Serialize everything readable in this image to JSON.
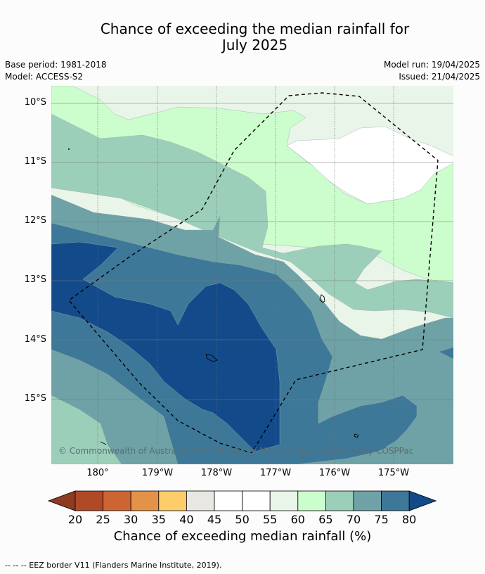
{
  "title_line1": "Chance of exceeding the median rainfall for",
  "title_line2": "July 2025",
  "meta": {
    "base_period": "Base period: 1981-2018",
    "model": "Model: ACCESS-S2",
    "model_run": "Model run: 19/04/2025",
    "issued": "Issued: 21/04/2025"
  },
  "lat_labels": [
    "10°S",
    "11°S",
    "12°S",
    "13°S",
    "14°S",
    "15°S"
  ],
  "lon_labels": [
    "180°",
    "179°W",
    "178°W",
    "177°W",
    "176°W",
    "175°W"
  ],
  "copyright": "© Commonwealth of Australia 2025, Bureau of Meteorology, supported by COSPPac",
  "colorbar": {
    "ticks": [
      "20",
      "25",
      "30",
      "35",
      "40",
      "45",
      "50",
      "55",
      "60",
      "65",
      "70",
      "75",
      "80"
    ],
    "colors": [
      "#8e3b22",
      "#b04a26",
      "#cd6533",
      "#e49248",
      "#fccd6a",
      "#e8e7e1",
      "#ffffff",
      "#ffffff",
      "#eaf5ea",
      "#ccfdcc",
      "#9ccfb9",
      "#6ea2a6",
      "#3e7899",
      "#134b8a"
    ],
    "title": "Chance of exceeding median rainfall (%)"
  },
  "footer": "--  --  -- EEZ border V11 (Flanders Marine Institute, 2019)."
}
